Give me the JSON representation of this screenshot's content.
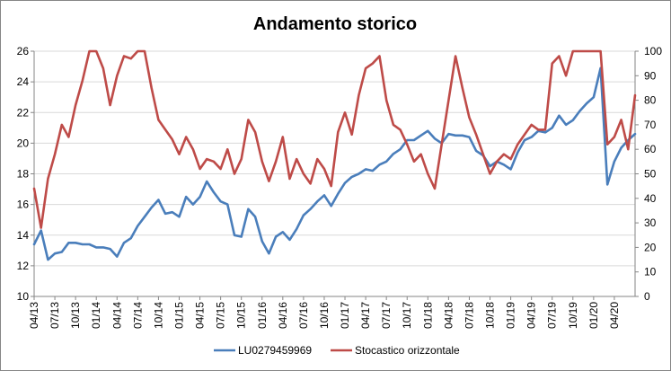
{
  "chart_data": {
    "type": "line",
    "title": "Andamento storico",
    "x_axis": {
      "start": "2013-04",
      "end": "2020-07",
      "tick_labels": [
        "04/13",
        "07/13",
        "10/13",
        "01/14",
        "04/14",
        "07/14",
        "10/14",
        "01/15",
        "04/15",
        "07/15",
        "10/15",
        "01/16",
        "04/16",
        "07/16",
        "10/16",
        "01/17",
        "04/17",
        "07/17",
        "10/17",
        "01/18",
        "04/18",
        "07/18",
        "10/18",
        "01/19",
        "04/19",
        "07/19",
        "10/19",
        "01/20",
        "04/20"
      ]
    },
    "y_left": {
      "min": 10,
      "max": 26,
      "step": 2,
      "ticks": [
        "10",
        "12",
        "14",
        "16",
        "18",
        "20",
        "22",
        "24",
        "26"
      ]
    },
    "y_right": {
      "min": 0,
      "max": 100,
      "step": 10,
      "ticks": [
        "0",
        "10",
        "20",
        "30",
        "40",
        "50",
        "60",
        "70",
        "80",
        "90",
        "100"
      ]
    },
    "grid": "horizontal",
    "legend_position": "bottom",
    "colors": {
      "series1": "#4a7ebb",
      "series2": "#be4b48",
      "grid": "#d9d9d9",
      "axis": "#868686",
      "border": "#868686"
    },
    "series": [
      {
        "name": "LU0279459969",
        "axis": "left",
        "x": [
          "2013-04",
          "2013-05",
          "2013-06",
          "2013-07",
          "2013-08",
          "2013-09",
          "2013-10",
          "2013-11",
          "2013-12",
          "2014-01",
          "2014-02",
          "2014-03",
          "2014-04",
          "2014-05",
          "2014-06",
          "2014-07",
          "2014-08",
          "2014-09",
          "2014-10",
          "2014-11",
          "2014-12",
          "2015-01",
          "2015-02",
          "2015-03",
          "2015-04",
          "2015-05",
          "2015-06",
          "2015-07",
          "2015-08",
          "2015-09",
          "2015-10",
          "2015-11",
          "2015-12",
          "2016-01",
          "2016-02",
          "2016-03",
          "2016-04",
          "2016-05",
          "2016-06",
          "2016-07",
          "2016-08",
          "2016-09",
          "2016-10",
          "2016-11",
          "2016-12",
          "2017-01",
          "2017-02",
          "2017-03",
          "2017-04",
          "2017-05",
          "2017-06",
          "2017-07",
          "2017-08",
          "2017-09",
          "2017-10",
          "2017-11",
          "2017-12",
          "2018-01",
          "2018-02",
          "2018-03",
          "2018-04",
          "2018-05",
          "2018-06",
          "2018-07",
          "2018-08",
          "2018-09",
          "2018-10",
          "2018-11",
          "2018-12",
          "2019-01",
          "2019-02",
          "2019-03",
          "2019-04",
          "2019-05",
          "2019-06",
          "2019-07",
          "2019-08",
          "2019-09",
          "2019-10",
          "2019-11",
          "2019-12",
          "2020-01",
          "2020-02",
          "2020-03",
          "2020-04",
          "2020-05",
          "2020-06",
          "2020-07"
        ],
        "values": [
          13.4,
          14.3,
          12.4,
          12.8,
          12.9,
          13.5,
          13.5,
          13.4,
          13.4,
          13.2,
          13.2,
          13.1,
          12.6,
          13.5,
          13.8,
          14.6,
          15.2,
          15.8,
          16.3,
          15.4,
          15.5,
          15.2,
          16.5,
          16.0,
          16.5,
          17.5,
          16.8,
          16.2,
          16.0,
          14.0,
          13.9,
          15.7,
          15.2,
          13.6,
          12.8,
          13.9,
          14.2,
          13.7,
          14.4,
          15.3,
          15.7,
          16.2,
          16.6,
          15.9,
          16.7,
          17.4,
          17.8,
          18.0,
          18.3,
          18.2,
          18.6,
          18.8,
          19.3,
          19.6,
          20.2,
          20.2,
          20.5,
          20.8,
          20.3,
          20.0,
          20.6,
          20.5,
          20.5,
          20.4,
          19.5,
          19.2,
          18.5,
          18.8,
          18.6,
          18.3,
          19.4,
          20.2,
          20.4,
          20.8,
          20.7,
          21.0,
          21.8,
          21.2,
          21.5,
          22.1,
          22.6,
          23.0,
          24.9,
          17.3,
          18.8,
          19.7,
          20.2,
          20.6
        ]
      },
      {
        "name": "Stocastico orizzontale",
        "axis": "right",
        "x": [
          "2013-04",
          "2013-05",
          "2013-06",
          "2013-07",
          "2013-08",
          "2013-09",
          "2013-10",
          "2013-11",
          "2013-12",
          "2014-01",
          "2014-02",
          "2014-03",
          "2014-04",
          "2014-05",
          "2014-06",
          "2014-07",
          "2014-08",
          "2014-09",
          "2014-10",
          "2014-11",
          "2014-12",
          "2015-01",
          "2015-02",
          "2015-03",
          "2015-04",
          "2015-05",
          "2015-06",
          "2015-07",
          "2015-08",
          "2015-09",
          "2015-10",
          "2015-11",
          "2015-12",
          "2016-01",
          "2016-02",
          "2016-03",
          "2016-04",
          "2016-05",
          "2016-06",
          "2016-07",
          "2016-08",
          "2016-09",
          "2016-10",
          "2016-11",
          "2016-12",
          "2017-01",
          "2017-02",
          "2017-03",
          "2017-04",
          "2017-05",
          "2017-06",
          "2017-07",
          "2017-08",
          "2017-09",
          "2017-10",
          "2017-11",
          "2017-12",
          "2018-01",
          "2018-02",
          "2018-03",
          "2018-04",
          "2018-05",
          "2018-06",
          "2018-07",
          "2018-08",
          "2018-09",
          "2018-10",
          "2018-11",
          "2018-12",
          "2019-01",
          "2019-02",
          "2019-03",
          "2019-04",
          "2019-05",
          "2019-06",
          "2019-07",
          "2019-08",
          "2019-09",
          "2019-10",
          "2019-11",
          "2019-12",
          "2020-01",
          "2020-02",
          "2020-03",
          "2020-04",
          "2020-05",
          "2020-06",
          "2020-07"
        ],
        "values": [
          44,
          28,
          48,
          58,
          70,
          65,
          78,
          88,
          100,
          100,
          93,
          78,
          90,
          98,
          97,
          100,
          100,
          85,
          72,
          68,
          64,
          58,
          65,
          60,
          52,
          56,
          55,
          52,
          60,
          50,
          56,
          72,
          67,
          55,
          47,
          55,
          65,
          48,
          56,
          50,
          46,
          56,
          52,
          45,
          67,
          75,
          66,
          82,
          93,
          95,
          98,
          80,
          70,
          68,
          62,
          55,
          58,
          50,
          44,
          62,
          80,
          98,
          85,
          73,
          66,
          58,
          50,
          55,
          58,
          56,
          62,
          66,
          70,
          68,
          68,
          95,
          98,
          90,
          100,
          100,
          100,
          100,
          100,
          62,
          65,
          72,
          60,
          82
        ]
      }
    ]
  }
}
